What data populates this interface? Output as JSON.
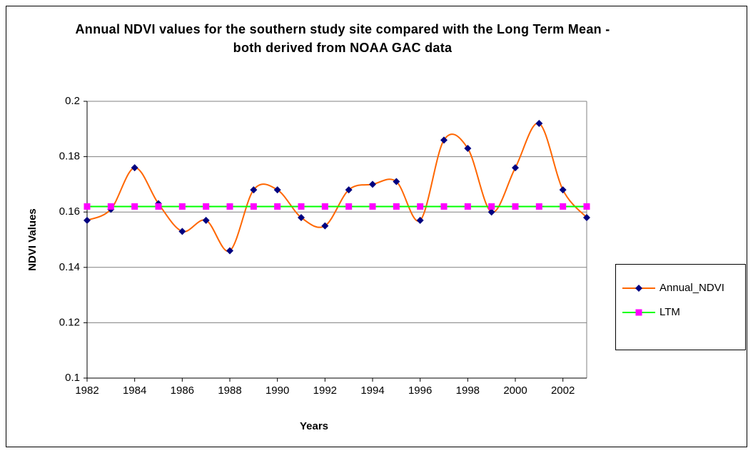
{
  "chart_data": {
    "type": "line",
    "title": "Annual NDVI values for the southern study site compared with the Long Term Mean - both derived from NOAA GAC data",
    "xlabel": "Years",
    "ylabel": "NDVI Values",
    "x": [
      1982,
      1983,
      1984,
      1985,
      1986,
      1987,
      1988,
      1989,
      1990,
      1991,
      1992,
      1993,
      1994,
      1995,
      1996,
      1997,
      1998,
      1999,
      2000,
      2001,
      2002,
      2003
    ],
    "series": [
      {
        "name": "Annual_NDVI",
        "color": "#FF6600",
        "marker_color": "#000080",
        "marker": "diamond",
        "smooth": true,
        "values": [
          0.157,
          0.161,
          0.176,
          0.163,
          0.153,
          0.157,
          0.146,
          0.168,
          0.168,
          0.158,
          0.155,
          0.168,
          0.17,
          0.171,
          0.157,
          0.186,
          0.183,
          0.16,
          0.176,
          0.192,
          0.168,
          0.158
        ]
      },
      {
        "name": "LTM",
        "color": "#00FF00",
        "marker_color": "#FF00FF",
        "marker": "square",
        "smooth": false,
        "values": [
          0.162,
          0.162,
          0.162,
          0.162,
          0.162,
          0.162,
          0.162,
          0.162,
          0.162,
          0.162,
          0.162,
          0.162,
          0.162,
          0.162,
          0.162,
          0.162,
          0.162,
          0.162,
          0.162,
          0.162,
          0.162,
          0.162
        ]
      }
    ],
    "xlim": [
      1982,
      2003
    ],
    "xticks": [
      1982,
      1984,
      1986,
      1988,
      1990,
      1992,
      1994,
      1996,
      1998,
      2000,
      2002
    ],
    "ylim": [
      0.1,
      0.2
    ],
    "yticks": [
      0.1,
      0.12,
      0.14,
      0.16,
      0.18,
      0.2
    ],
    "grid": true,
    "legend": "right"
  }
}
